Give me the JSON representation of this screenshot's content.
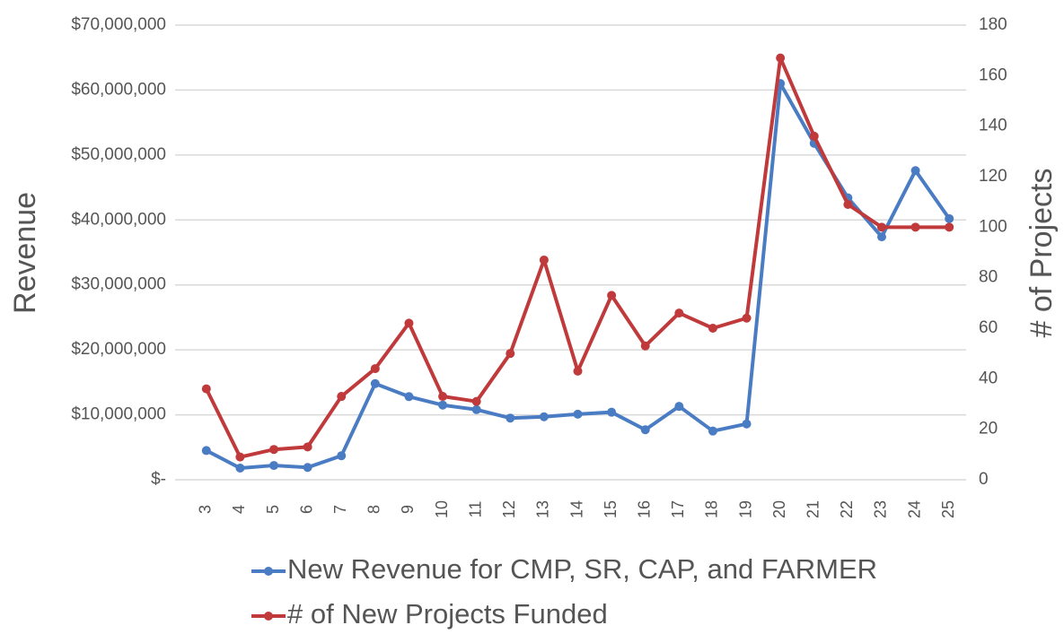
{
  "chart_data": {
    "type": "line",
    "categories": [
      "3",
      "4",
      "5",
      "6",
      "7",
      "8",
      "9",
      "10",
      "11",
      "12",
      "13",
      "14",
      "15",
      "16",
      "17",
      "18",
      "19",
      "20",
      "21",
      "22",
      "23",
      "24",
      "25"
    ],
    "ylabel": "Revenue",
    "y2label": "# of Projects",
    "ylim": [
      0,
      70000000
    ],
    "yticks": [
      {
        "value": 0,
        "label": "$-"
      },
      {
        "value": 10000000,
        "label": "$10,000,000"
      },
      {
        "value": 20000000,
        "label": "$20,000,000"
      },
      {
        "value": 30000000,
        "label": "$30,000,000"
      },
      {
        "value": 40000000,
        "label": "$40,000,000"
      },
      {
        "value": 50000000,
        "label": "$50,000,000"
      },
      {
        "value": 60000000,
        "label": "$60,000,000"
      },
      {
        "value": 70000000,
        "label": "$70,000,000"
      }
    ],
    "y2lim": [
      0,
      180
    ],
    "y2ticks": [
      0,
      20,
      40,
      60,
      80,
      100,
      120,
      140,
      160,
      180
    ],
    "grid": true,
    "series": [
      {
        "name": "New Revenue for CMP, SR, CAP, and FARMER",
        "color": "#4a7cc4",
        "values": [
          4500000,
          1800000,
          2200000,
          1900000,
          3700000,
          14800000,
          12800000,
          11500000,
          10800000,
          9500000,
          9700000,
          10100000,
          10400000,
          7700000,
          11300000,
          7500000,
          8600000,
          61000000,
          51800000,
          43400000,
          37400000,
          47600000,
          40200000
        ]
      },
      {
        "name": "# of New Projects Funded",
        "color": "#c0393b",
        "axis": "y2",
        "values": [
          36,
          9,
          12,
          13,
          33,
          44,
          62,
          33,
          31,
          50,
          87,
          43,
          73,
          53,
          66,
          60,
          64,
          167,
          136,
          109,
          100,
          100,
          100
        ]
      }
    ]
  }
}
